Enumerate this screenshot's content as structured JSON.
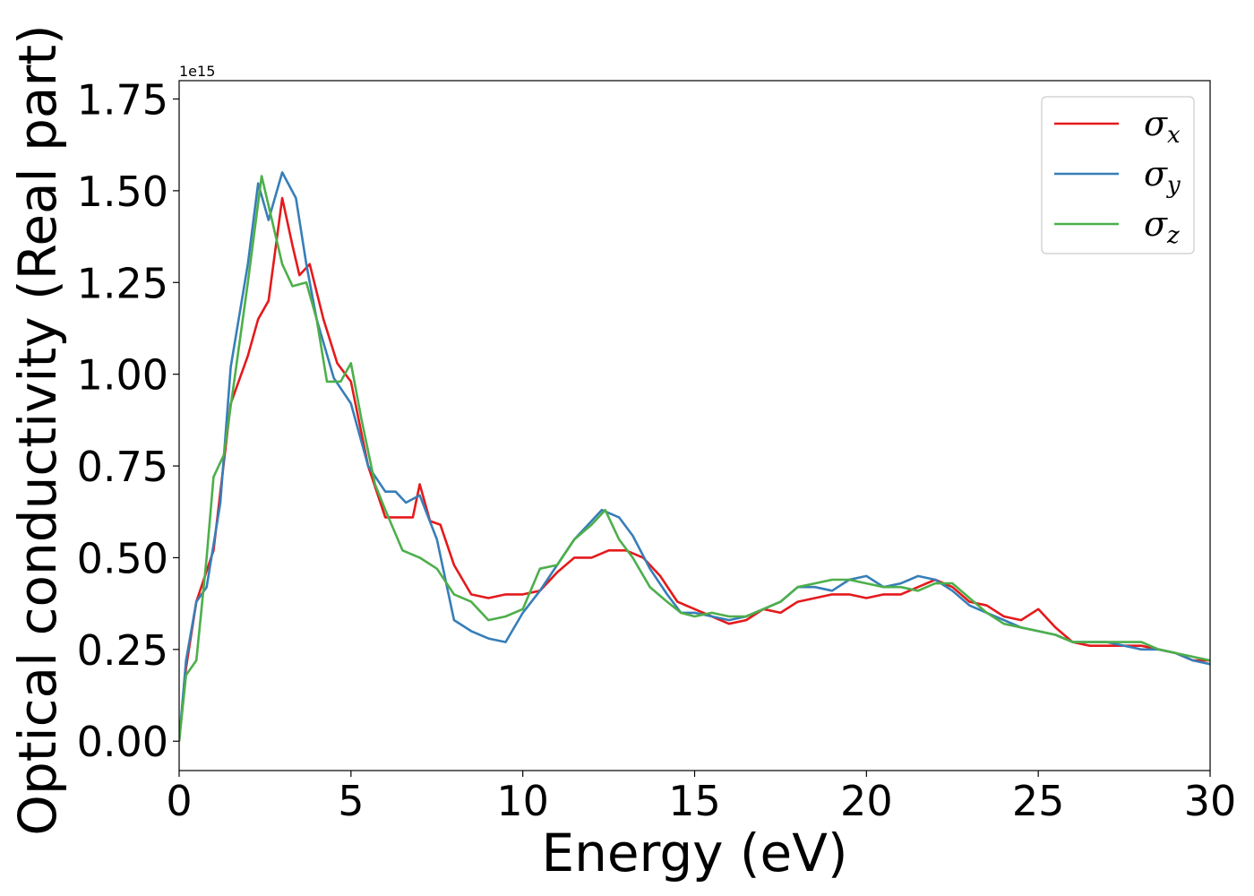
{
  "chart_data": {
    "type": "line",
    "xlabel": "Energy (eV)",
    "ylabel": "Optical conductivity (Real part)",
    "y_offset_label": "1e15",
    "xlim": [
      0,
      30
    ],
    "ylim": [
      -0.08,
      1.8
    ],
    "xticks": [
      0,
      5,
      10,
      15,
      20,
      25,
      30
    ],
    "xtick_labels": [
      "0",
      "5",
      "10",
      "15",
      "20",
      "25",
      "30"
    ],
    "yticks": [
      0.0,
      0.25,
      0.5,
      0.75,
      1.0,
      1.25,
      1.5,
      1.75
    ],
    "ytick_labels": [
      "0.00",
      "0.25",
      "0.50",
      "0.75",
      "1.00",
      "1.25",
      "1.50",
      "1.75"
    ],
    "grid": false,
    "legend_position": "top-right",
    "series": [
      {
        "name": "σx",
        "symbol": "σ",
        "subscript": "x",
        "color": "#e41a1c",
        "points": [
          [
            0,
            0.0
          ],
          [
            0.2,
            0.2
          ],
          [
            0.5,
            0.38
          ],
          [
            1.0,
            0.52
          ],
          [
            1.5,
            0.92
          ],
          [
            2.0,
            1.05
          ],
          [
            2.3,
            1.15
          ],
          [
            2.6,
            1.2
          ],
          [
            3.0,
            1.48
          ],
          [
            3.3,
            1.35
          ],
          [
            3.5,
            1.27
          ],
          [
            3.8,
            1.3
          ],
          [
            4.2,
            1.15
          ],
          [
            4.6,
            1.03
          ],
          [
            5.0,
            0.98
          ],
          [
            5.5,
            0.75
          ],
          [
            6.0,
            0.61
          ],
          [
            6.5,
            0.61
          ],
          [
            6.8,
            0.61
          ],
          [
            7.0,
            0.7
          ],
          [
            7.3,
            0.6
          ],
          [
            7.6,
            0.59
          ],
          [
            8.0,
            0.48
          ],
          [
            8.5,
            0.4
          ],
          [
            9.0,
            0.39
          ],
          [
            9.5,
            0.4
          ],
          [
            10.0,
            0.4
          ],
          [
            10.5,
            0.41
          ],
          [
            11.0,
            0.46
          ],
          [
            11.5,
            0.5
          ],
          [
            12.0,
            0.5
          ],
          [
            12.5,
            0.52
          ],
          [
            13.0,
            0.52
          ],
          [
            13.5,
            0.5
          ],
          [
            14.0,
            0.45
          ],
          [
            14.5,
            0.38
          ],
          [
            15.0,
            0.36
          ],
          [
            15.5,
            0.34
          ],
          [
            16.0,
            0.32
          ],
          [
            16.5,
            0.33
          ],
          [
            17.0,
            0.36
          ],
          [
            17.5,
            0.35
          ],
          [
            18.0,
            0.38
          ],
          [
            18.5,
            0.39
          ],
          [
            19.0,
            0.4
          ],
          [
            19.5,
            0.4
          ],
          [
            20.0,
            0.39
          ],
          [
            20.5,
            0.4
          ],
          [
            21.0,
            0.4
          ],
          [
            21.5,
            0.42
          ],
          [
            22.0,
            0.44
          ],
          [
            22.5,
            0.42
          ],
          [
            23.0,
            0.38
          ],
          [
            23.5,
            0.37
          ],
          [
            24.0,
            0.34
          ],
          [
            24.5,
            0.33
          ],
          [
            25.0,
            0.36
          ],
          [
            25.5,
            0.31
          ],
          [
            26.0,
            0.27
          ],
          [
            26.5,
            0.26
          ],
          [
            27.0,
            0.26
          ],
          [
            27.5,
            0.26
          ],
          [
            28.0,
            0.26
          ],
          [
            28.5,
            0.25
          ],
          [
            29.0,
            0.24
          ],
          [
            29.5,
            0.22
          ],
          [
            30.0,
            0.22
          ]
        ]
      },
      {
        "name": "σy",
        "symbol": "σ",
        "subscript": "y",
        "color": "#377eb8",
        "points": [
          [
            0,
            0.0
          ],
          [
            0.2,
            0.22
          ],
          [
            0.5,
            0.38
          ],
          [
            0.8,
            0.42
          ],
          [
            1.2,
            0.65
          ],
          [
            1.5,
            1.02
          ],
          [
            2.0,
            1.3
          ],
          [
            2.3,
            1.52
          ],
          [
            2.6,
            1.42
          ],
          [
            3.0,
            1.55
          ],
          [
            3.4,
            1.48
          ],
          [
            3.7,
            1.3
          ],
          [
            4.0,
            1.15
          ],
          [
            4.5,
            0.99
          ],
          [
            5.0,
            0.92
          ],
          [
            5.5,
            0.75
          ],
          [
            6.0,
            0.68
          ],
          [
            6.3,
            0.68
          ],
          [
            6.6,
            0.65
          ],
          [
            7.0,
            0.67
          ],
          [
            7.5,
            0.55
          ],
          [
            8.0,
            0.33
          ],
          [
            8.5,
            0.3
          ],
          [
            9.0,
            0.28
          ],
          [
            9.5,
            0.27
          ],
          [
            10.0,
            0.35
          ],
          [
            10.5,
            0.41
          ],
          [
            11.0,
            0.48
          ],
          [
            11.5,
            0.55
          ],
          [
            12.0,
            0.6
          ],
          [
            12.3,
            0.63
          ],
          [
            12.8,
            0.61
          ],
          [
            13.2,
            0.56
          ],
          [
            13.7,
            0.47
          ],
          [
            14.2,
            0.4
          ],
          [
            14.6,
            0.35
          ],
          [
            15.0,
            0.35
          ],
          [
            15.5,
            0.34
          ],
          [
            16.0,
            0.33
          ],
          [
            16.5,
            0.34
          ],
          [
            17.0,
            0.36
          ],
          [
            17.5,
            0.38
          ],
          [
            18.0,
            0.42
          ],
          [
            18.5,
            0.42
          ],
          [
            19.0,
            0.41
          ],
          [
            19.5,
            0.44
          ],
          [
            20.0,
            0.45
          ],
          [
            20.5,
            0.42
          ],
          [
            21.0,
            0.43
          ],
          [
            21.5,
            0.45
          ],
          [
            22.0,
            0.44
          ],
          [
            22.5,
            0.41
          ],
          [
            23.0,
            0.37
          ],
          [
            23.5,
            0.35
          ],
          [
            24.0,
            0.33
          ],
          [
            24.5,
            0.31
          ],
          [
            25.0,
            0.3
          ],
          [
            25.5,
            0.29
          ],
          [
            26.0,
            0.27
          ],
          [
            26.5,
            0.27
          ],
          [
            27.0,
            0.27
          ],
          [
            27.5,
            0.26
          ],
          [
            28.0,
            0.25
          ],
          [
            28.5,
            0.25
          ],
          [
            29.0,
            0.24
          ],
          [
            29.5,
            0.22
          ],
          [
            30.0,
            0.21
          ]
        ]
      },
      {
        "name": "σz",
        "symbol": "σ",
        "subscript": "z",
        "color": "#4daf4a",
        "points": [
          [
            0,
            0.0
          ],
          [
            0.2,
            0.18
          ],
          [
            0.5,
            0.22
          ],
          [
            0.8,
            0.5
          ],
          [
            1.0,
            0.72
          ],
          [
            1.3,
            0.78
          ],
          [
            1.6,
            0.98
          ],
          [
            2.0,
            1.25
          ],
          [
            2.4,
            1.54
          ],
          [
            2.7,
            1.42
          ],
          [
            3.0,
            1.3
          ],
          [
            3.3,
            1.24
          ],
          [
            3.7,
            1.25
          ],
          [
            4.0,
            1.15
          ],
          [
            4.3,
            0.98
          ],
          [
            4.7,
            0.98
          ],
          [
            5.0,
            1.03
          ],
          [
            5.3,
            0.88
          ],
          [
            5.7,
            0.7
          ],
          [
            6.0,
            0.63
          ],
          [
            6.5,
            0.52
          ],
          [
            7.0,
            0.5
          ],
          [
            7.5,
            0.47
          ],
          [
            8.0,
            0.4
          ],
          [
            8.5,
            0.38
          ],
          [
            9.0,
            0.33
          ],
          [
            9.5,
            0.34
          ],
          [
            10.0,
            0.36
          ],
          [
            10.5,
            0.47
          ],
          [
            11.0,
            0.48
          ],
          [
            11.5,
            0.55
          ],
          [
            12.0,
            0.59
          ],
          [
            12.4,
            0.63
          ],
          [
            12.8,
            0.55
          ],
          [
            13.2,
            0.5
          ],
          [
            13.7,
            0.42
          ],
          [
            14.2,
            0.38
          ],
          [
            14.6,
            0.35
          ],
          [
            15.0,
            0.34
          ],
          [
            15.5,
            0.35
          ],
          [
            16.0,
            0.34
          ],
          [
            16.5,
            0.34
          ],
          [
            17.0,
            0.36
          ],
          [
            17.5,
            0.38
          ],
          [
            18.0,
            0.42
          ],
          [
            18.5,
            0.43
          ],
          [
            19.0,
            0.44
          ],
          [
            19.5,
            0.44
          ],
          [
            20.0,
            0.43
          ],
          [
            20.5,
            0.42
          ],
          [
            21.0,
            0.42
          ],
          [
            21.5,
            0.41
          ],
          [
            22.0,
            0.43
          ],
          [
            22.5,
            0.43
          ],
          [
            23.0,
            0.39
          ],
          [
            23.5,
            0.35
          ],
          [
            24.0,
            0.32
          ],
          [
            24.5,
            0.31
          ],
          [
            25.0,
            0.3
          ],
          [
            25.5,
            0.29
          ],
          [
            26.0,
            0.27
          ],
          [
            26.5,
            0.27
          ],
          [
            27.0,
            0.27
          ],
          [
            27.5,
            0.27
          ],
          [
            28.0,
            0.27
          ],
          [
            28.5,
            0.25
          ],
          [
            29.0,
            0.24
          ],
          [
            29.5,
            0.23
          ],
          [
            30.0,
            0.22
          ]
        ]
      }
    ]
  }
}
